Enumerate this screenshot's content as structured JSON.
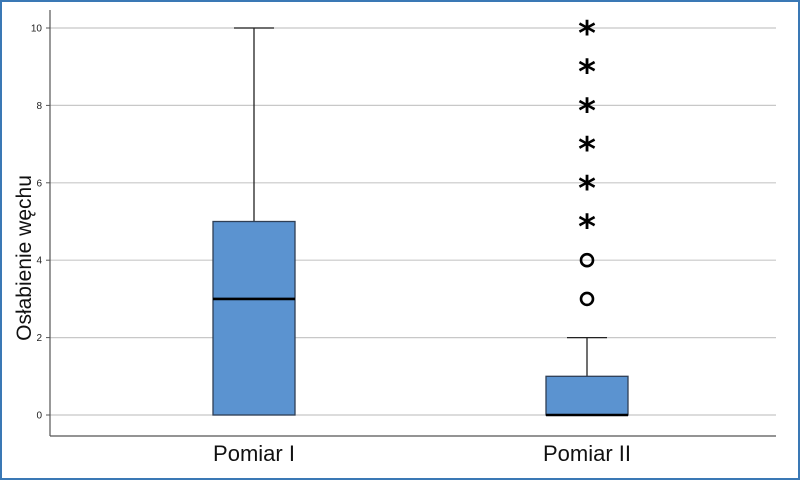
{
  "colors": {
    "box_fill": "#5b93d0",
    "box_stroke": "#2f3f55",
    "grid": "#c8c8c8",
    "frame": "#3a78b5"
  },
  "chart_data": {
    "type": "box",
    "title": "",
    "xlabel": "",
    "ylabel": "Osłabienie węchu",
    "ylim": [
      0,
      10.5
    ],
    "yticks": [
      0,
      2,
      4,
      6,
      8,
      10
    ],
    "grid": true,
    "categories": [
      "Pomiar I",
      "Pomiar II"
    ],
    "boxes": [
      {
        "category": "Pomiar I",
        "whisker_low": 0,
        "q1": 0,
        "median": 3,
        "q3": 5,
        "whisker_high": 10,
        "outliers": [],
        "extremes": []
      },
      {
        "category": "Pomiar II",
        "whisker_low": 0,
        "q1": 0,
        "median": 0,
        "q3": 1,
        "whisker_high": 2,
        "outliers": [
          3,
          4
        ],
        "extremes": [
          5,
          6,
          7,
          8,
          9,
          10
        ]
      }
    ],
    "markers": {
      "outlier": "circle",
      "extreme": "asterisk"
    }
  }
}
